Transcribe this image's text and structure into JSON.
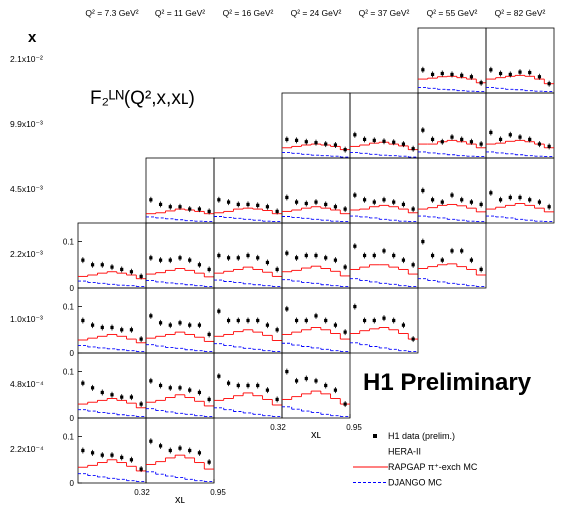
{
  "chart_data": {
    "type": "histogram",
    "title": "F₂ᴸᴺ(Q²,x,xʟ)",
    "row_axis_label": "x",
    "xlabel": "xʟ",
    "annotation": "H1 Preliminary",
    "columns": [
      "Q² = 7.3 GeV²",
      "Q² = 11 GeV²",
      "Q² = 16 GeV²",
      "Q² = 24 GeV²",
      "Q² = 37 GeV²",
      "Q² = 55 GeV²",
      "Q² = 82 GeV²"
    ],
    "bins": [
      0.32,
      0.41,
      0.5,
      0.59,
      0.68,
      0.77,
      0.86,
      0.95
    ],
    "xlim": [
      0.32,
      0.95
    ],
    "xticks": [
      0.32,
      0.95
    ],
    "ylim": [
      0,
      0.14
    ],
    "yticks": [
      0,
      0.1
    ],
    "legend": [
      {
        "name": "H1 data (prelim.)",
        "color": "#000000"
      },
      {
        "name": "HERA-II"
      },
      {
        "name": "RAPGAP π⁺-exch MC",
        "color": "#ff0000"
      },
      {
        "name": "DJANGO MC",
        "color": "#0000ff"
      }
    ],
    "rows": [
      {
        "label": "2.1x10⁻²",
        "panels": [
          null,
          null,
          null,
          null,
          null,
          {
            "data": [
              0.05,
              0.04,
              0.042,
              0.04,
              0.038,
              0.035,
              0.022
            ],
            "rapgap": [
              0.03,
              0.032,
              0.035,
              0.036,
              0.033,
              0.03,
              0.022
            ],
            "django": [
              0.012,
              0.01,
              0.008,
              0.007,
              0.005,
              0.004,
              0.003
            ]
          },
          {
            "data": [
              0.05,
              0.042,
              0.04,
              0.045,
              0.044,
              0.035,
              0.02
            ],
            "rapgap": [
              0.03,
              0.033,
              0.036,
              0.038,
              0.036,
              0.03,
              0.02
            ],
            "django": [
              0.012,
              0.01,
              0.008,
              0.007,
              0.005,
              0.004,
              0.003
            ]
          }
        ]
      },
      {
        "label": "9.9x10⁻³",
        "panels": [
          null,
          null,
          null,
          {
            "data": [
              0.04,
              0.038,
              0.035,
              0.033,
              0.03,
              0.028,
              0.018
            ],
            "rapgap": [
              0.022,
              0.025,
              0.028,
              0.03,
              0.028,
              0.025,
              0.018
            ],
            "django": [
              0.012,
              0.01,
              0.008,
              0.006,
              0.005,
              0.004,
              0.002
            ]
          },
          {
            "data": [
              0.05,
              0.04,
              0.038,
              0.036,
              0.034,
              0.03,
              0.02
            ],
            "rapgap": [
              0.025,
              0.028,
              0.032,
              0.034,
              0.03,
              0.026,
              0.018
            ],
            "django": [
              0.012,
              0.01,
              0.008,
              0.006,
              0.005,
              0.004,
              0.002
            ]
          },
          {
            "data": [
              0.06,
              0.04,
              0.035,
              0.045,
              0.04,
              0.035,
              0.03
            ],
            "rapgap": [
              0.03,
              0.03,
              0.035,
              0.038,
              0.035,
              0.03,
              0.022
            ],
            "django": [
              0.013,
              0.011,
              0.009,
              0.007,
              0.005,
              0.004,
              0.003
            ]
          },
          {
            "data": [
              0.055,
              0.04,
              0.05,
              0.045,
              0.04,
              0.03,
              0.025
            ],
            "rapgap": [
              0.03,
              0.032,
              0.036,
              0.038,
              0.035,
              0.03,
              0.022
            ],
            "django": [
              0.013,
              0.011,
              0.009,
              0.007,
              0.005,
              0.004,
              0.003
            ]
          }
        ]
      },
      {
        "label": "4.5x10⁻³",
        "panels": [
          null,
          {
            "data": [
              0.05,
              0.04,
              0.035,
              0.035,
              0.03,
              0.03,
              0.025
            ],
            "rapgap": [
              0.02,
              0.022,
              0.026,
              0.03,
              0.028,
              0.025,
              0.02
            ],
            "django": [
              0.013,
              0.011,
              0.009,
              0.007,
              0.005,
              0.004,
              0.003
            ]
          },
          {
            "data": [
              0.05,
              0.045,
              0.04,
              0.04,
              0.038,
              0.035,
              0.025
            ],
            "rapgap": [
              0.022,
              0.025,
              0.03,
              0.032,
              0.03,
              0.027,
              0.02
            ],
            "django": [
              0.014,
              0.012,
              0.01,
              0.008,
              0.006,
              0.004,
              0.003
            ]
          },
          {
            "data": [
              0.055,
              0.045,
              0.042,
              0.045,
              0.04,
              0.035,
              0.03
            ],
            "rapgap": [
              0.025,
              0.028,
              0.032,
              0.035,
              0.032,
              0.028,
              0.02
            ],
            "django": [
              0.014,
              0.012,
              0.01,
              0.008,
              0.006,
              0.004,
              0.003
            ]
          },
          {
            "data": [
              0.06,
              0.05,
              0.045,
              0.05,
              0.045,
              0.04,
              0.03
            ],
            "rapgap": [
              0.028,
              0.03,
              0.035,
              0.038,
              0.035,
              0.03,
              0.022
            ],
            "django": [
              0.015,
              0.013,
              0.011,
              0.008,
              0.006,
              0.004,
              0.003
            ]
          },
          {
            "data": [
              0.07,
              0.05,
              0.045,
              0.06,
              0.05,
              0.045,
              0.04
            ],
            "rapgap": [
              0.03,
              0.033,
              0.038,
              0.04,
              0.037,
              0.032,
              0.024
            ],
            "django": [
              0.015,
              0.013,
              0.011,
              0.008,
              0.006,
              0.004,
              0.003
            ]
          },
          {
            "data": [
              0.065,
              0.05,
              0.055,
              0.055,
              0.05,
              0.045,
              0.035
            ],
            "rapgap": [
              0.03,
              0.034,
              0.038,
              0.042,
              0.038,
              0.032,
              0.024
            ],
            "django": [
              0.015,
              0.013,
              0.011,
              0.008,
              0.006,
              0.004,
              0.003
            ]
          }
        ]
      },
      {
        "label": "2.2x10⁻³",
        "panels": [
          {
            "data": [
              0.06,
              0.05,
              0.05,
              0.045,
              0.04,
              0.035,
              0.025
            ],
            "rapgap": [
              0.025,
              0.028,
              0.032,
              0.035,
              0.032,
              0.028,
              0.02
            ],
            "django": [
              0.015,
              0.012,
              0.01,
              0.008,
              0.006,
              0.005,
              0.003
            ]
          },
          {
            "data": [
              0.065,
              0.06,
              0.06,
              0.065,
              0.06,
              0.05,
              0.04
            ],
            "rapgap": [
              0.03,
              0.033,
              0.038,
              0.042,
              0.038,
              0.032,
              0.024
            ],
            "django": [
              0.016,
              0.013,
              0.011,
              0.009,
              0.007,
              0.005,
              0.003
            ]
          },
          {
            "data": [
              0.07,
              0.065,
              0.065,
              0.07,
              0.065,
              0.055,
              0.04
            ],
            "rapgap": [
              0.032,
              0.036,
              0.04,
              0.045,
              0.04,
              0.034,
              0.025
            ],
            "django": [
              0.017,
              0.014,
              0.012,
              0.009,
              0.007,
              0.005,
              0.003
            ]
          },
          {
            "data": [
              0.075,
              0.065,
              0.07,
              0.07,
              0.065,
              0.06,
              0.045
            ],
            "rapgap": [
              0.035,
              0.038,
              0.043,
              0.047,
              0.042,
              0.036,
              0.026
            ],
            "django": [
              0.018,
              0.015,
              0.012,
              0.01,
              0.007,
              0.005,
              0.003
            ]
          },
          {
            "data": [
              0.09,
              0.07,
              0.07,
              0.08,
              0.07,
              0.06,
              0.05
            ],
            "rapgap": [
              0.04,
              0.045,
              0.05,
              0.05,
              0.045,
              0.04,
              0.03
            ],
            "django": [
              0.02,
              0.016,
              0.013,
              0.01,
              0.008,
              0.005,
              0.003
            ]
          },
          {
            "data": [
              0.1,
              0.07,
              0.06,
              0.08,
              0.08,
              0.06,
              0.04
            ],
            "rapgap": [
              0.042,
              0.046,
              0.05,
              0.052,
              0.046,
              0.04,
              0.028
            ],
            "django": [
              0.02,
              0.016,
              0.013,
              0.01,
              0.008,
              0.005,
              0.003
            ]
          },
          null
        ]
      },
      {
        "label": "1.0x10⁻³",
        "panels": [
          {
            "data": [
              0.07,
              0.06,
              0.055,
              0.055,
              0.05,
              0.05,
              0.03
            ],
            "rapgap": [
              0.028,
              0.032,
              0.036,
              0.04,
              0.036,
              0.03,
              0.022
            ],
            "django": [
              0.016,
              0.013,
              0.011,
              0.009,
              0.007,
              0.005,
              0.003
            ]
          },
          {
            "data": [
              0.08,
              0.065,
              0.06,
              0.065,
              0.06,
              0.06,
              0.04
            ],
            "rapgap": [
              0.032,
              0.036,
              0.04,
              0.045,
              0.04,
              0.034,
              0.025
            ],
            "django": [
              0.018,
              0.015,
              0.012,
              0.01,
              0.007,
              0.005,
              0.003
            ]
          },
          {
            "data": [
              0.09,
              0.07,
              0.07,
              0.07,
              0.07,
              0.06,
              0.05
            ],
            "rapgap": [
              0.036,
              0.04,
              0.046,
              0.05,
              0.045,
              0.038,
              0.027
            ],
            "django": [
              0.02,
              0.016,
              0.013,
              0.01,
              0.008,
              0.005,
              0.003
            ]
          },
          {
            "data": [
              0.095,
              0.07,
              0.07,
              0.08,
              0.07,
              0.06,
              0.045
            ],
            "rapgap": [
              0.04,
              0.045,
              0.05,
              0.055,
              0.05,
              0.042,
              0.03
            ],
            "django": [
              0.021,
              0.017,
              0.014,
              0.011,
              0.008,
              0.005,
              0.003
            ]
          },
          {
            "data": [
              0.1,
              0.07,
              0.07,
              0.075,
              0.07,
              0.06,
              0.03
            ],
            "rapgap": [
              0.042,
              0.048,
              0.052,
              0.055,
              0.05,
              0.042,
              0.03
            ],
            "django": [
              0.022,
              0.018,
              0.014,
              0.011,
              0.008,
              0.005,
              0.003
            ]
          },
          null,
          null
        ]
      },
      {
        "label": "4.8x10⁻⁴",
        "panels": [
          {
            "data": [
              0.075,
              0.065,
              0.055,
              0.05,
              0.045,
              0.045,
              0.03
            ],
            "rapgap": [
              0.03,
              0.034,
              0.038,
              0.042,
              0.038,
              0.032,
              0.022
            ],
            "django": [
              0.018,
              0.015,
              0.012,
              0.01,
              0.007,
              0.005,
              0.003
            ]
          },
          {
            "data": [
              0.08,
              0.07,
              0.065,
              0.065,
              0.06,
              0.055,
              0.04
            ],
            "rapgap": [
              0.034,
              0.038,
              0.044,
              0.05,
              0.044,
              0.036,
              0.026
            ],
            "django": [
              0.02,
              0.016,
              0.013,
              0.01,
              0.008,
              0.005,
              0.003
            ]
          },
          {
            "data": [
              0.09,
              0.075,
              0.07,
              0.07,
              0.07,
              0.06,
              0.04
            ],
            "rapgap": [
              0.038,
              0.042,
              0.048,
              0.054,
              0.048,
              0.04,
              0.028
            ],
            "django": [
              0.022,
              0.018,
              0.014,
              0.011,
              0.008,
              0.005,
              0.003
            ]
          },
          {
            "data": [
              0.1,
              0.08,
              0.085,
              0.08,
              0.07,
              0.06,
              0.03
            ],
            "rapgap": [
              0.04,
              0.046,
              0.052,
              0.058,
              0.052,
              0.042,
              0.03
            ],
            "django": [
              0.024,
              0.019,
              0.015,
              0.012,
              0.008,
              0.005,
              0.003
            ]
          },
          null,
          null,
          null
        ]
      },
      {
        "label": "2.2x10⁻⁴",
        "panels": [
          {
            "data": [
              0.07,
              0.065,
              0.06,
              0.06,
              0.055,
              0.05,
              0.03
            ],
            "rapgap": [
              0.034,
              0.038,
              0.044,
              0.05,
              0.044,
              0.036,
              0.026
            ],
            "django": [
              0.02,
              0.016,
              0.013,
              0.01,
              0.008,
              0.005,
              0.003
            ]
          },
          {
            "data": [
              0.09,
              0.08,
              0.07,
              0.075,
              0.07,
              0.065,
              0.045
            ],
            "rapgap": [
              0.04,
              0.046,
              0.054,
              0.06,
              0.054,
              0.044,
              0.03
            ],
            "django": [
              0.024,
              0.019,
              0.015,
              0.012,
              0.008,
              0.005,
              0.003
            ]
          },
          null,
          null,
          null,
          null,
          null
        ]
      }
    ]
  }
}
